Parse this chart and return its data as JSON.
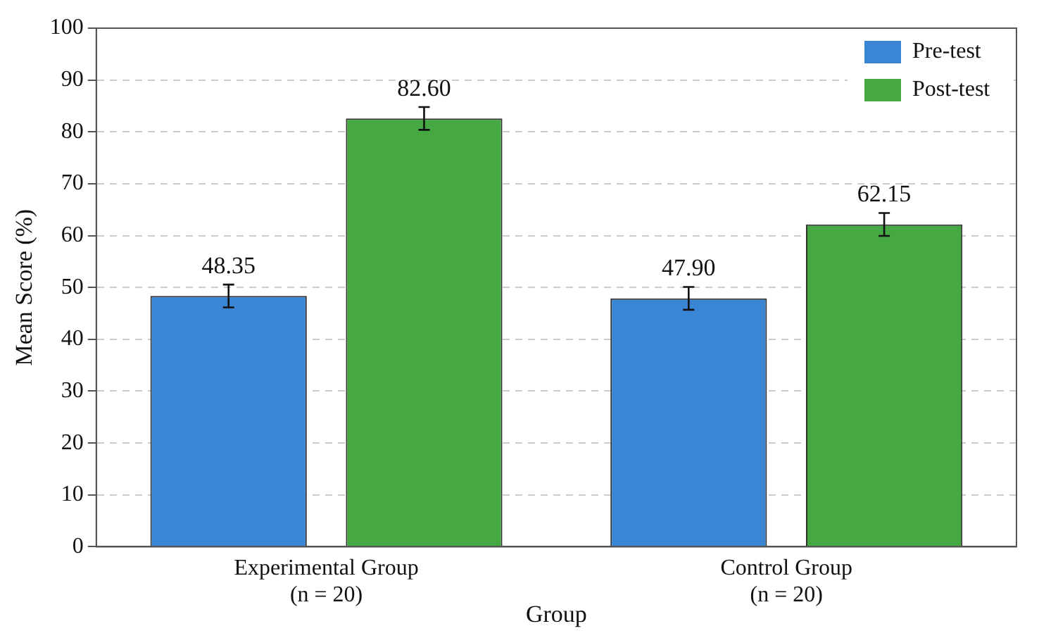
{
  "chart_data": {
    "type": "bar",
    "xlabel": "Group",
    "ylabel": "Mean Score (%)",
    "categories": [
      "Experimental Group\n(n = 20)",
      "Control Group\n(n = 20)"
    ],
    "series": [
      {
        "name": "Pre-test",
        "color": "#3a86d4",
        "values": [
          48.35,
          47.9
        ],
        "value_labels": [
          "48.35",
          "47.90"
        ],
        "errors": [
          2.2,
          2.2
        ]
      },
      {
        "name": "Post-test",
        "color": "#46a843",
        "values": [
          82.6,
          62.15
        ],
        "value_labels": [
          "82.60",
          "62.15"
        ],
        "errors": [
          2.2,
          2.2
        ]
      }
    ],
    "ylim": [
      0,
      100
    ],
    "yticks": [
      0,
      10,
      20,
      30,
      40,
      50,
      60,
      70,
      80,
      90,
      100
    ],
    "grid": "y",
    "legend": "top right"
  }
}
